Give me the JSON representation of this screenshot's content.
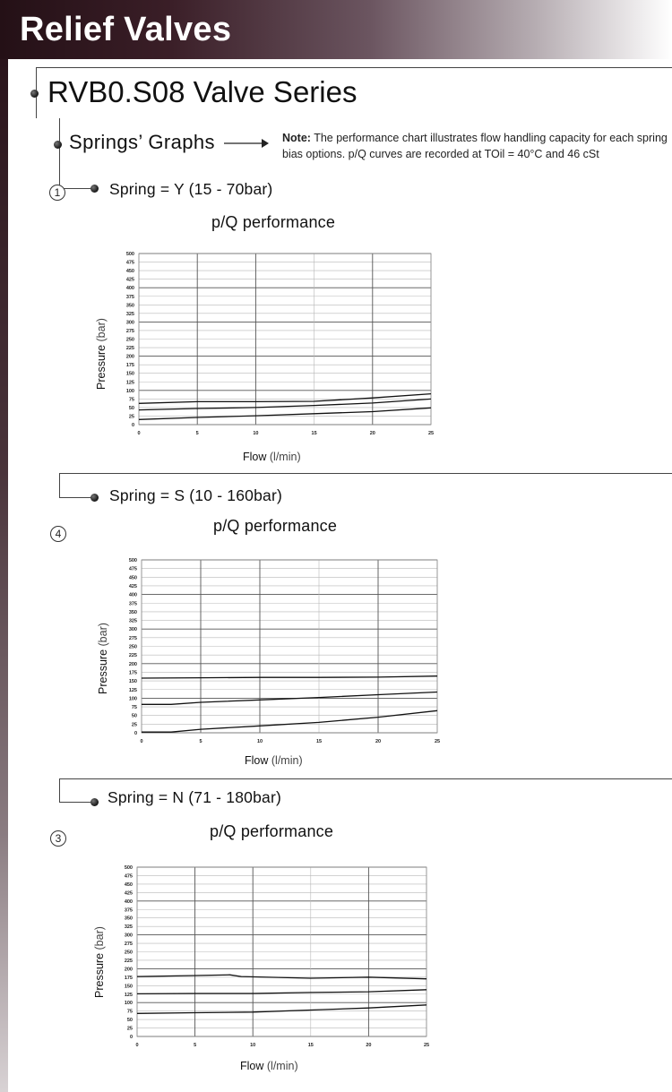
{
  "header": {
    "title": "Relief Valves"
  },
  "series": {
    "title": "RVB0.S08 Valve Series"
  },
  "springs": {
    "title": "Springs’ Graphs",
    "note_label": "Note:",
    "note_text": " The performance chart illustrates flow handling capacity for each spring bias options.  p/Q curves are recorded at TOil = 40°C and 46 cSt"
  },
  "sections": [
    {
      "spring": "Spring = Y (15 - 70bar)",
      "number": "1",
      "chart_title": "p/Q performance",
      "xlabel": "Flow",
      "xunit": "(l/min)",
      "ylabel": "Pressure",
      "yunit": "(bar)"
    },
    {
      "spring": "Spring = S (10 - 160bar)",
      "number": "4",
      "chart_title": "p/Q performance",
      "xlabel": "Flow",
      "xunit": "(l/min)",
      "ylabel": "Pressure",
      "yunit": "(bar)"
    },
    {
      "spring": "Spring = N (71 - 180bar)",
      "number": "3",
      "chart_title": "p/Q performance",
      "xlabel": "Flow",
      "xunit": "(l/min)",
      "ylabel": "Pressure",
      "yunit": "(bar)"
    }
  ],
  "chart_data": [
    {
      "type": "line",
      "title": "p/Q performance",
      "xlabel": "Flow (l/min)",
      "ylabel": "Pressure (bar)",
      "xlim": [
        0,
        25
      ],
      "ylim": [
        0,
        500
      ],
      "xticks": [
        0,
        5,
        10,
        15,
        20,
        25
      ],
      "yticks": [
        0,
        25,
        50,
        75,
        100,
        125,
        150,
        175,
        200,
        225,
        250,
        275,
        300,
        325,
        350,
        375,
        400,
        425,
        450,
        475,
        500
      ],
      "grid": true,
      "series": [
        {
          "x": [
            0,
            5,
            10,
            15,
            20,
            25
          ],
          "y": [
            62,
            67,
            67,
            68,
            78,
            90
          ]
        },
        {
          "x": [
            0,
            5,
            10,
            15,
            20,
            25
          ],
          "y": [
            43,
            47,
            50,
            56,
            63,
            75
          ]
        },
        {
          "x": [
            0,
            5,
            10,
            15,
            20,
            25
          ],
          "y": [
            15,
            21,
            26,
            32,
            38,
            49
          ]
        }
      ]
    },
    {
      "type": "line",
      "title": "p/Q performance",
      "xlabel": "Flow (l/min)",
      "ylabel": "Pressure (bar)",
      "xlim": [
        0,
        25
      ],
      "ylim": [
        0,
        500
      ],
      "xticks": [
        0,
        5,
        10,
        15,
        20,
        25
      ],
      "yticks": [
        0,
        25,
        50,
        75,
        100,
        125,
        150,
        175,
        200,
        225,
        250,
        275,
        300,
        325,
        350,
        375,
        400,
        425,
        450,
        475,
        500
      ],
      "grid": true,
      "series": [
        {
          "x": [
            0,
            5,
            10,
            15,
            20,
            25
          ],
          "y": [
            158,
            159,
            160,
            160,
            161,
            164
          ]
        },
        {
          "x": [
            0,
            2.5,
            5,
            10,
            15,
            20,
            25
          ],
          "y": [
            82,
            82,
            88,
            95,
            102,
            110,
            118
          ]
        },
        {
          "x": [
            0,
            2.5,
            5,
            10,
            15,
            20,
            25
          ],
          "y": [
            2,
            2,
            10,
            20,
            30,
            45,
            64
          ]
        }
      ]
    },
    {
      "type": "line",
      "title": "p/Q performance",
      "xlabel": "Flow (l/min)",
      "ylabel": "Pressure (bar)",
      "xlim": [
        0,
        25
      ],
      "ylim": [
        0,
        500
      ],
      "xticks": [
        0,
        5,
        10,
        15,
        20,
        25
      ],
      "yticks": [
        0,
        25,
        50,
        75,
        100,
        125,
        150,
        175,
        200,
        225,
        250,
        275,
        300,
        325,
        350,
        375,
        400,
        425,
        450,
        475,
        500
      ],
      "grid": true,
      "series": [
        {
          "x": [
            0,
            5,
            8,
            9,
            15,
            20,
            25
          ],
          "y": [
            177,
            180,
            182,
            177,
            172,
            175,
            170
          ]
        },
        {
          "x": [
            0,
            5,
            10,
            15,
            20,
            25
          ],
          "y": [
            126,
            127,
            127,
            130,
            132,
            138
          ]
        },
        {
          "x": [
            0,
            5,
            10,
            15,
            20,
            25
          ],
          "y": [
            68,
            70,
            72,
            78,
            84,
            93
          ]
        }
      ]
    }
  ]
}
